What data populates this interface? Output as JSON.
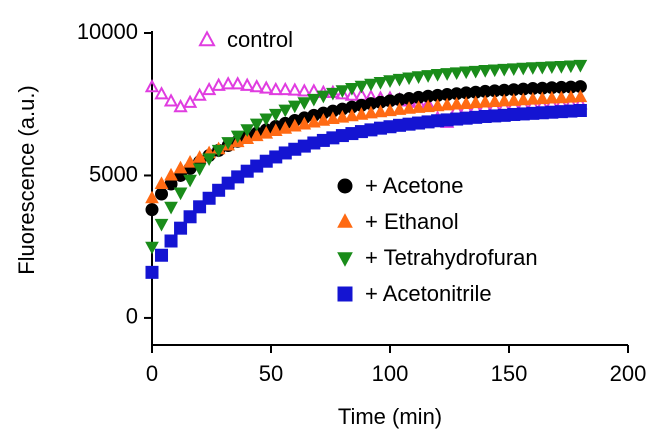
{
  "chart_data": {
    "type": "scatter",
    "x_label": "Time (min)",
    "y_label": "Fluorescence (a.u.)",
    "xlim": [
      0,
      200
    ],
    "xticks": [
      0,
      50,
      100,
      150,
      200
    ],
    "ylim": [
      -950,
      10000
    ],
    "yticks": [
      0,
      5000,
      10000
    ],
    "x": [
      0,
      4,
      8,
      12,
      16,
      20,
      24,
      28,
      32,
      36,
      40,
      44,
      48,
      52,
      56,
      60,
      64,
      68,
      72,
      76,
      80,
      84,
      88,
      92,
      96,
      100,
      104,
      108,
      112,
      116,
      120,
      124,
      128,
      132,
      136,
      140,
      144,
      148,
      152,
      156,
      160,
      164,
      168,
      172,
      176,
      180
    ],
    "series": [
      {
        "name": "control",
        "color": "#e03ce0",
        "marker": "triangle-up",
        "filled": false,
        "values": [
          8100,
          7850,
          7600,
          7400,
          7550,
          7800,
          8000,
          8150,
          8200,
          8200,
          8150,
          8100,
          8050,
          8000,
          8000,
          7980,
          7950,
          7950,
          7900,
          7900,
          7850,
          7800,
          7800,
          7750,
          7700,
          7700,
          7650,
          7600,
          7550,
          7500,
          7000,
          6850,
          7300,
          7350,
          7350,
          7400,
          7400,
          7400,
          7450,
          7450,
          7450,
          7450,
          7500,
          7500,
          7500,
          7500
        ]
      },
      {
        "name": "+ Acetone",
        "color": "#000000",
        "marker": "circle",
        "filled": true,
        "values": [
          3800,
          4350,
          4700,
          5000,
          5250,
          5480,
          5700,
          5880,
          6050,
          6200,
          6350,
          6480,
          6600,
          6720,
          6830,
          6930,
          7020,
          7110,
          7190,
          7260,
          7330,
          7400,
          7460,
          7520,
          7570,
          7620,
          7660,
          7700,
          7740,
          7780,
          7810,
          7840,
          7870,
          7900,
          7920,
          7950,
          7970,
          7990,
          8010,
          8030,
          8050,
          8060,
          8080,
          8090,
          8100,
          8120
        ]
      },
      {
        "name": "+ Ethanol",
        "color": "#ff6a13",
        "marker": "triangle-up",
        "filled": true,
        "values": [
          4200,
          4700,
          5000,
          5250,
          5450,
          5620,
          5780,
          5920,
          6050,
          6170,
          6280,
          6380,
          6470,
          6560,
          6640,
          6720,
          6790,
          6860,
          6920,
          6980,
          7030,
          7080,
          7130,
          7180,
          7220,
          7260,
          7300,
          7340,
          7370,
          7400,
          7430,
          7460,
          7490,
          7510,
          7540,
          7560,
          7580,
          7600,
          7620,
          7640,
          7660,
          7680,
          7700,
          7710,
          7730,
          7750
        ]
      },
      {
        "name": "+ Tetrahydrofuran",
        "color": "#1a8c1a",
        "marker": "triangle-down",
        "filled": true,
        "values": [
          2500,
          3300,
          3900,
          4400,
          4850,
          5250,
          5600,
          5900,
          6170,
          6400,
          6620,
          6820,
          7000,
          7160,
          7310,
          7450,
          7570,
          7690,
          7800,
          7900,
          7990,
          8070,
          8150,
          8220,
          8280,
          8340,
          8390,
          8440,
          8480,
          8520,
          8560,
          8590,
          8620,
          8650,
          8670,
          8700,
          8720,
          8740,
          8760,
          8780,
          8800,
          8810,
          8830,
          8840,
          8860,
          8880
        ]
      },
      {
        "name": "+ Acetonitrile",
        "color": "#1414d2",
        "marker": "square",
        "filled": true,
        "values": [
          1600,
          2200,
          2700,
          3150,
          3550,
          3900,
          4200,
          4480,
          4730,
          4950,
          5150,
          5330,
          5500,
          5650,
          5790,
          5920,
          6030,
          6140,
          6230,
          6320,
          6400,
          6470,
          6540,
          6600,
          6660,
          6710,
          6760,
          6800,
          6840,
          6880,
          6920,
          6950,
          6980,
          7010,
          7040,
          7070,
          7090,
          7110,
          7140,
          7160,
          7180,
          7200,
          7220,
          7240,
          7260,
          7280
        ]
      }
    ]
  }
}
